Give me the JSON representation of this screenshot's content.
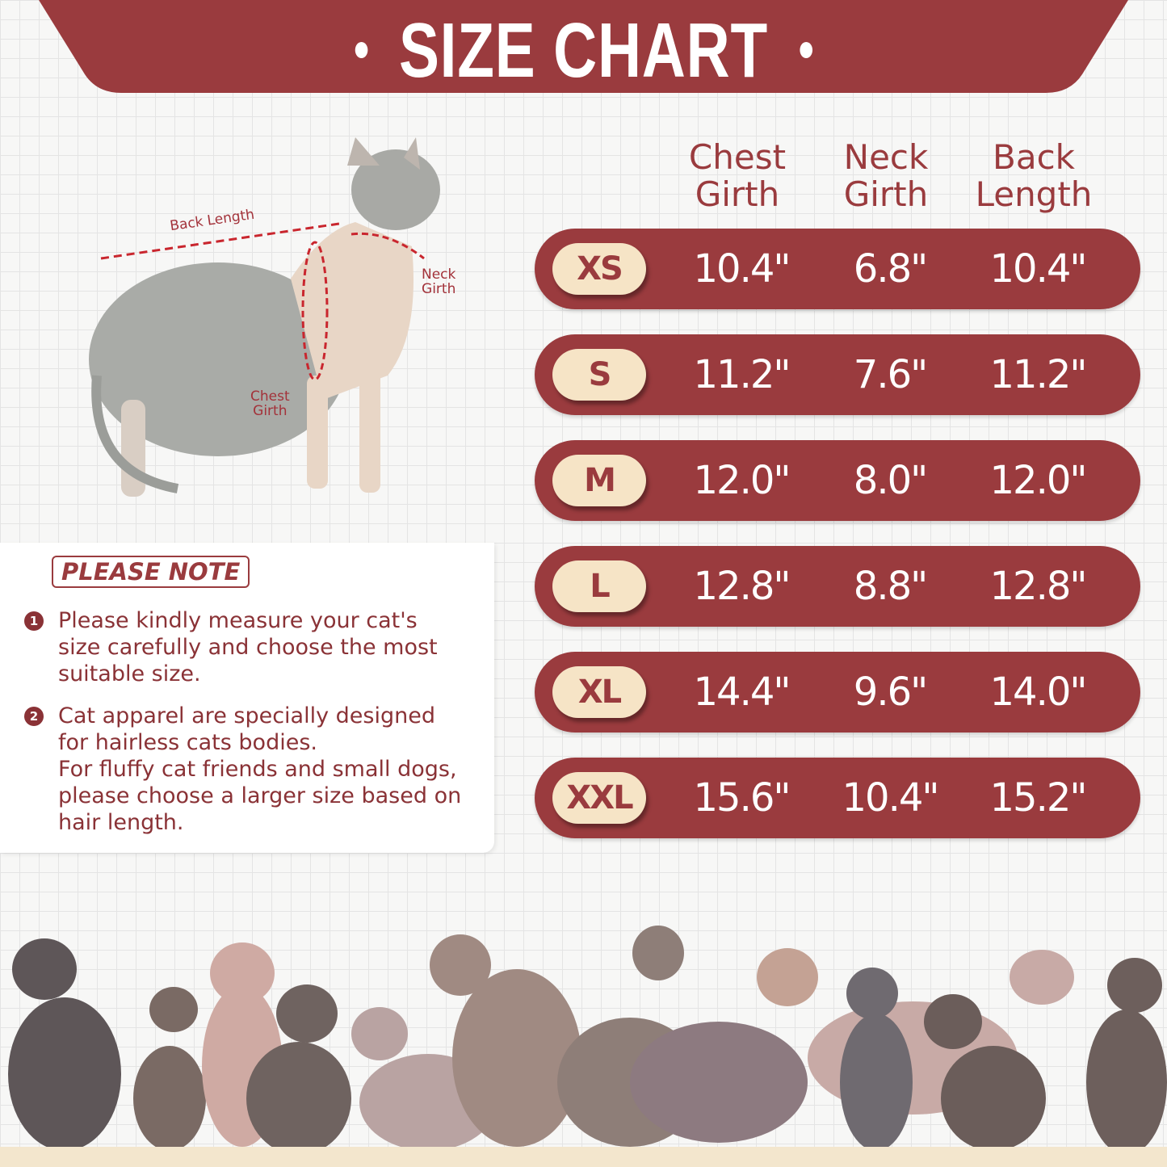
{
  "header": {
    "title": "SIZE CHART"
  },
  "colors": {
    "accent": "#9a3b3e",
    "pill": "#f6e4c6",
    "background": "#f7f7f6"
  },
  "diagram": {
    "back_length": "Back Length",
    "neck_girth": [
      "Neck",
      "Girth"
    ],
    "chest_girth": [
      "Chest",
      "Girth"
    ]
  },
  "table": {
    "columns": [
      [
        "Chest",
        "Girth"
      ],
      [
        "Neck",
        "Girth"
      ],
      [
        "Back",
        "Length"
      ]
    ],
    "rows": [
      {
        "size": "XS",
        "values": [
          "10.4\"",
          "6.8\"",
          "10.4\""
        ]
      },
      {
        "size": "S",
        "values": [
          "11.2\"",
          "7.6\"",
          "11.2\""
        ]
      },
      {
        "size": "M",
        "values": [
          "12.0\"",
          "8.0\"",
          "12.0\""
        ]
      },
      {
        "size": "L",
        "values": [
          "12.8\"",
          "8.8\"",
          "12.8\""
        ]
      },
      {
        "size": "XL",
        "values": [
          "14.4\"",
          "9.6\"",
          "14.0\""
        ]
      },
      {
        "size": "XXL",
        "values": [
          "15.6\"",
          "10.4\"",
          "15.2\""
        ]
      }
    ]
  },
  "note": {
    "heading": "PLEASE NOTE",
    "items": [
      {
        "num": "1",
        "text": "Please kindly measure your cat's size carefully and choose the most suitable size."
      },
      {
        "num": "2",
        "text": "Cat apparel are specially designed for hairless cats bodies.",
        "text2": "For fluffy cat friends and small dogs, please choose a larger size based on hair length."
      }
    ]
  }
}
